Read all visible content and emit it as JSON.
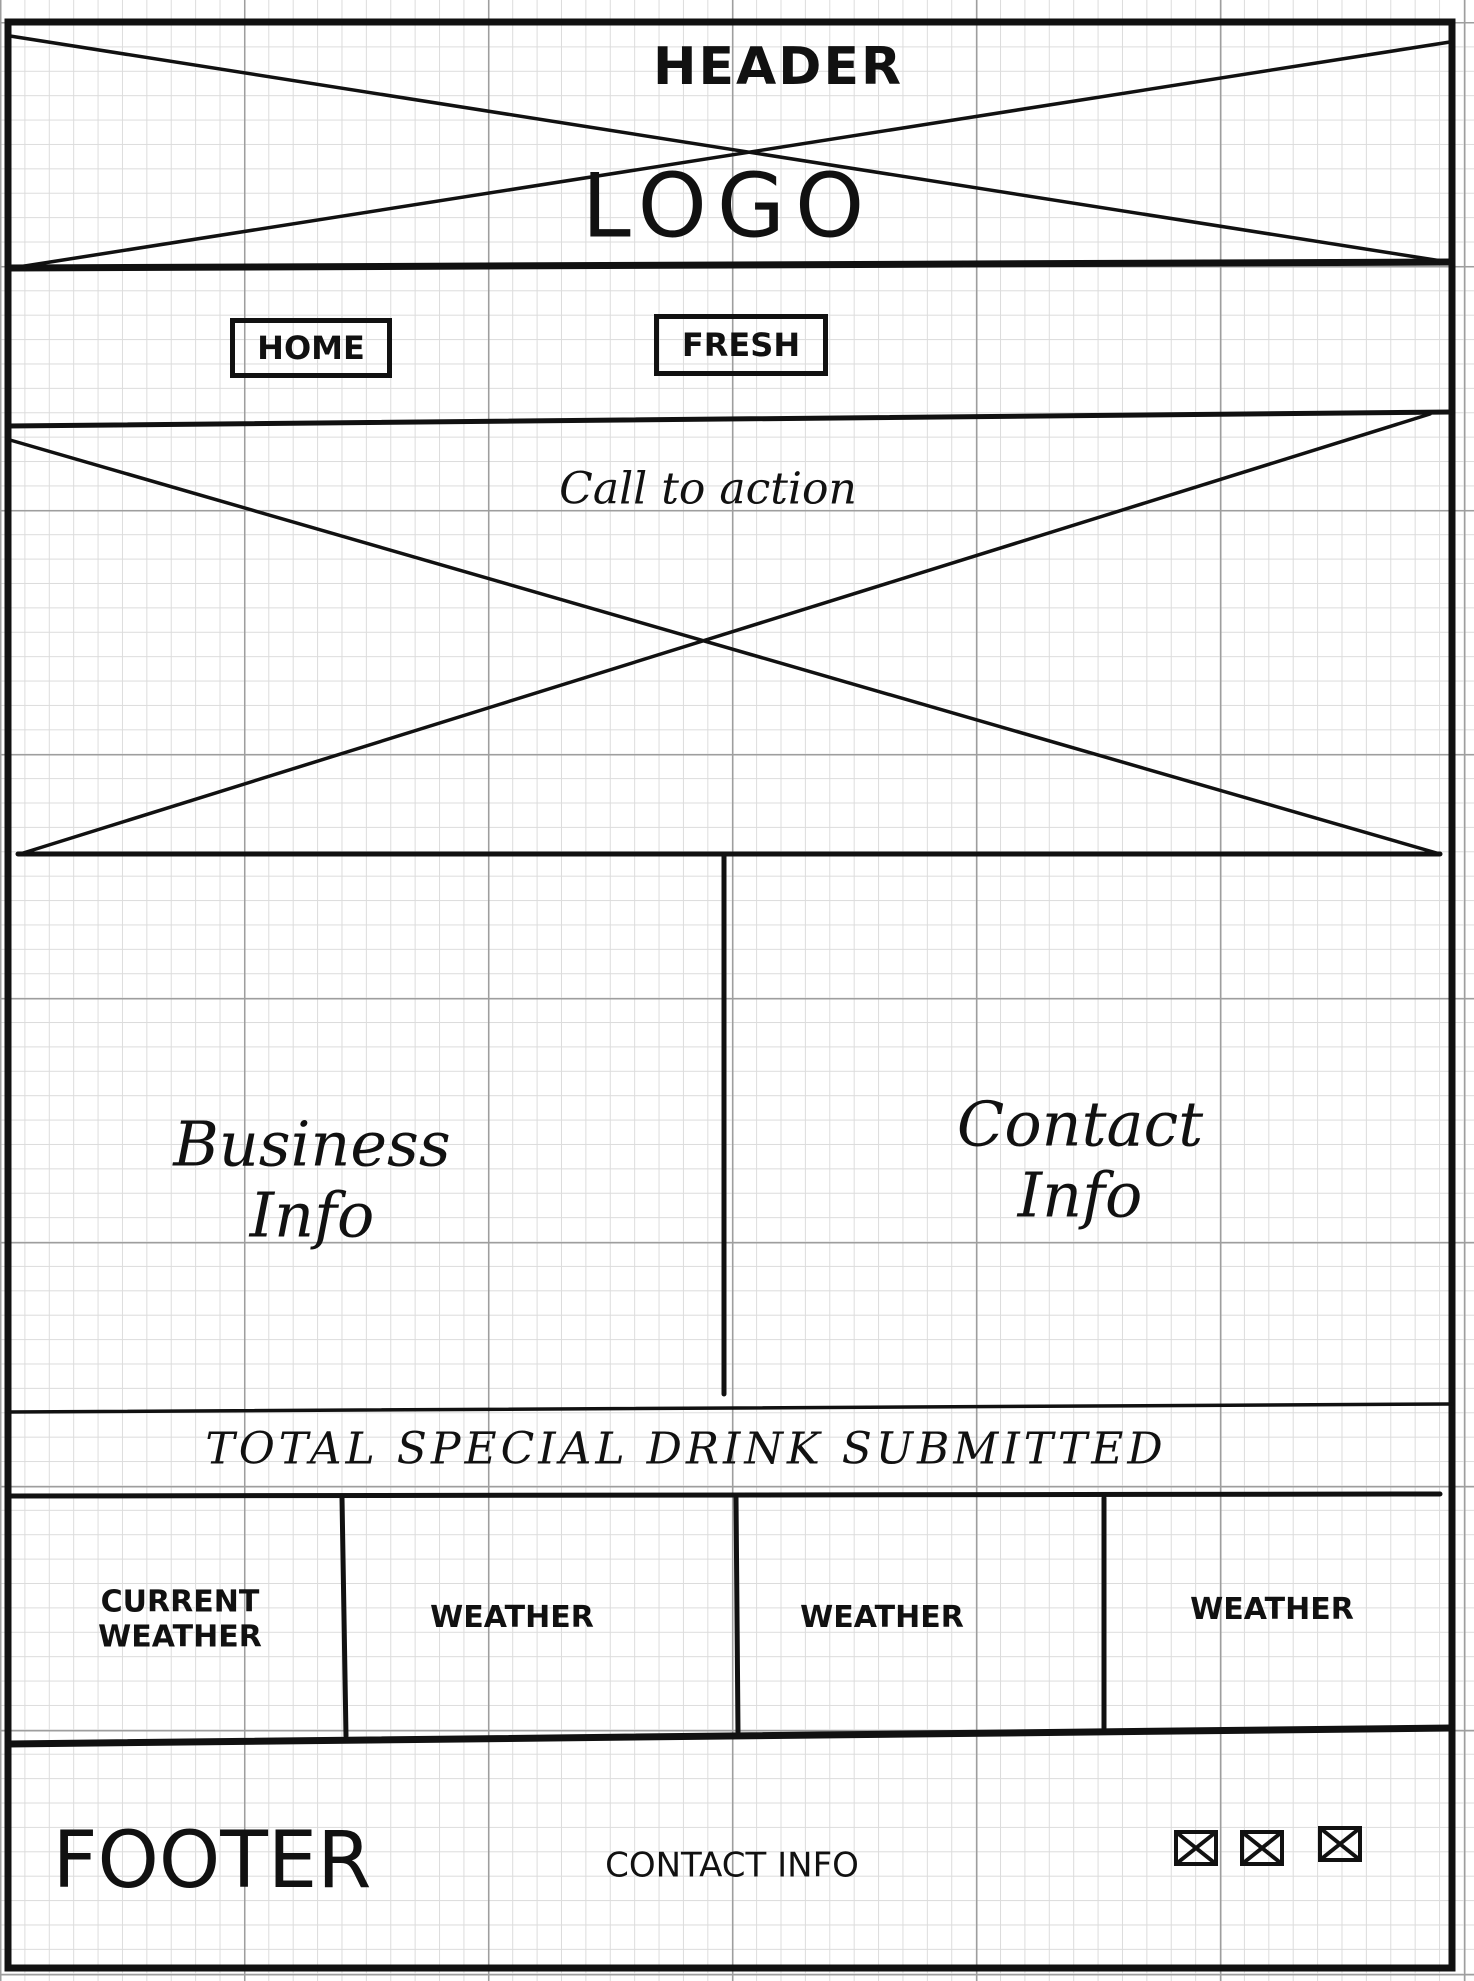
{
  "header": {
    "title": "HEADER",
    "logo": "LOGO"
  },
  "nav": {
    "home_label": "HOME",
    "fresh_label": "FRESH"
  },
  "hero": {
    "label": "Call to action"
  },
  "info": {
    "business": "Business Info",
    "contact": "Contact Info"
  },
  "drinks": {
    "label": "TOTAL SPECIAL DRINK SUBMITTED"
  },
  "weather": {
    "current_line1": "CURRENT",
    "current_line2": "WEATHER",
    "cards": [
      "WEATHER",
      "WEATHER",
      "WEATHER"
    ]
  },
  "footer": {
    "label": "FOOTER",
    "contact": "CONTACT INFO",
    "social_icons": [
      "x-box-icon",
      "x-box-icon",
      "x-box-icon"
    ]
  },
  "colors": {
    "ink": "#111111",
    "grid_major": "#9e9e9e",
    "grid_minor": "#dcdcdc",
    "paper": "#ffffff"
  }
}
